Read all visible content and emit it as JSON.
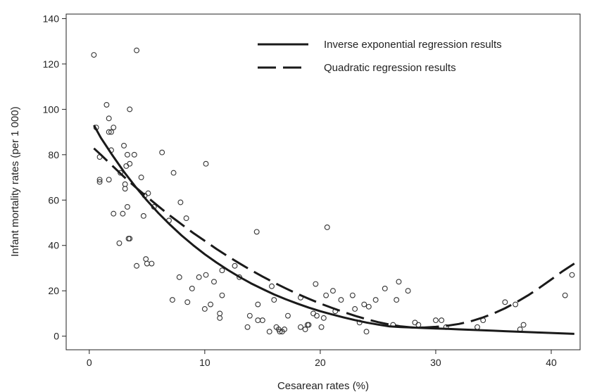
{
  "chart_data": {
    "type": "scatter",
    "title": "",
    "xlabel": "Cesarean rates (%)",
    "ylabel": "Infant mortality rates (per 1 000)",
    "xlim": [
      -2,
      42.5
    ],
    "ylim": [
      -6,
      142
    ],
    "xticks": [
      0,
      10,
      20,
      30,
      40
    ],
    "yticks": [
      0,
      20,
      40,
      60,
      80,
      100,
      120,
      140
    ],
    "grid": false,
    "legend_position": "top-right",
    "legend": [
      {
        "label": "Inverse exponential regression results",
        "style": "solid"
      },
      {
        "label": "Quadratic regression results",
        "style": "dashed"
      }
    ],
    "points": [
      [
        0.4,
        124
      ],
      [
        0.6,
        92
      ],
      [
        0.9,
        79
      ],
      [
        0.9,
        69
      ],
      [
        0.9,
        68
      ],
      [
        1.5,
        102
      ],
      [
        1.7,
        96
      ],
      [
        1.7,
        90
      ],
      [
        1.9,
        90
      ],
      [
        2.1,
        92
      ],
      [
        1.9,
        82
      ],
      [
        1.7,
        69
      ],
      [
        2.1,
        54
      ],
      [
        2.6,
        41
      ],
      [
        2.7,
        72
      ],
      [
        2.9,
        54
      ],
      [
        3.0,
        84
      ],
      [
        3.1,
        65
      ],
      [
        3.1,
        67
      ],
      [
        3.3,
        80
      ],
      [
        3.2,
        75
      ],
      [
        3.3,
        57
      ],
      [
        3.5,
        76
      ],
      [
        3.5,
        100
      ],
      [
        3.5,
        43
      ],
      [
        3.4,
        43
      ],
      [
        3.9,
        80
      ],
      [
        4.1,
        126
      ],
      [
        4.1,
        31
      ],
      [
        4.5,
        70
      ],
      [
        4.7,
        53
      ],
      [
        4.8,
        62
      ],
      [
        4.9,
        34
      ],
      [
        5.0,
        32
      ],
      [
        5.1,
        63
      ],
      [
        5.4,
        32
      ],
      [
        5.6,
        57
      ],
      [
        6.3,
        81
      ],
      [
        6.9,
        51
      ],
      [
        7.2,
        16
      ],
      [
        7.3,
        72
      ],
      [
        7.8,
        26
      ],
      [
        7.9,
        59
      ],
      [
        8.4,
        52
      ],
      [
        8.5,
        15
      ],
      [
        8.9,
        21
      ],
      [
        9.5,
        26
      ],
      [
        10.0,
        12
      ],
      [
        10.1,
        76
      ],
      [
        10.1,
        27
      ],
      [
        10.5,
        14
      ],
      [
        10.8,
        24
      ],
      [
        11.3,
        10
      ],
      [
        11.3,
        8
      ],
      [
        11.5,
        18
      ],
      [
        11.5,
        29
      ],
      [
        12.6,
        31
      ],
      [
        13.0,
        26
      ],
      [
        13.7,
        4
      ],
      [
        13.9,
        9
      ],
      [
        14.5,
        46
      ],
      [
        14.6,
        14
      ],
      [
        14.6,
        7
      ],
      [
        15.0,
        7
      ],
      [
        15.6,
        2
      ],
      [
        15.8,
        22
      ],
      [
        16.0,
        16
      ],
      [
        16.2,
        4
      ],
      [
        16.4,
        3
      ],
      [
        16.5,
        2
      ],
      [
        16.7,
        2
      ],
      [
        16.9,
        3
      ],
      [
        17.2,
        9
      ],
      [
        18.3,
        17
      ],
      [
        18.3,
        4
      ],
      [
        18.7,
        3
      ],
      [
        18.9,
        5
      ],
      [
        19.0,
        5
      ],
      [
        19.4,
        10
      ],
      [
        19.6,
        23
      ],
      [
        19.7,
        9
      ],
      [
        20.1,
        4
      ],
      [
        20.3,
        8
      ],
      [
        20.5,
        18
      ],
      [
        20.6,
        48
      ],
      [
        21.1,
        20
      ],
      [
        21.3,
        11
      ],
      [
        21.8,
        16
      ],
      [
        22.8,
        18
      ],
      [
        23.0,
        12
      ],
      [
        23.4,
        6
      ],
      [
        23.8,
        14
      ],
      [
        24.0,
        2
      ],
      [
        24.2,
        13
      ],
      [
        24.8,
        16
      ],
      [
        25.6,
        21
      ],
      [
        26.3,
        5
      ],
      [
        26.6,
        16
      ],
      [
        26.8,
        24
      ],
      [
        27.6,
        20
      ],
      [
        28.2,
        6
      ],
      [
        28.5,
        5
      ],
      [
        30.0,
        7
      ],
      [
        30.5,
        7
      ],
      [
        30.9,
        4
      ],
      [
        33.6,
        4
      ],
      [
        34.1,
        7
      ],
      [
        36.0,
        15
      ],
      [
        36.9,
        14
      ],
      [
        37.3,
        3
      ],
      [
        37.6,
        5
      ],
      [
        41.2,
        18
      ],
      [
        41.8,
        27
      ]
    ],
    "series": [
      {
        "name": "Inverse exponential regression results",
        "style": "solid",
        "x": [
          0.4,
          1,
          2,
          3,
          4,
          5,
          6,
          7,
          8,
          9,
          10,
          11,
          12,
          13,
          14,
          15,
          16,
          17,
          18,
          19,
          20,
          21,
          22,
          23,
          24,
          25,
          26,
          27,
          28,
          29,
          30,
          31,
          32,
          33,
          34,
          35,
          36,
          37,
          38,
          39,
          40,
          41,
          42
        ],
        "y": [
          93.0,
          87.5,
          79.8,
          72.5,
          65.9,
          59.8,
          54.2,
          49.1,
          44.4,
          40.1,
          36.1,
          32.5,
          29.2,
          26.1,
          23.3,
          20.8,
          18.4,
          16.3,
          14.4,
          12.6,
          11.0,
          9.6,
          8.3,
          7.1,
          6.0,
          5.1,
          4.3,
          4.0,
          3.8,
          3.6,
          3.4,
          3.2,
          3.0,
          2.8,
          2.6,
          2.4,
          2.2,
          2.0,
          1.8,
          1.6,
          1.4,
          1.2,
          1.0
        ]
      },
      {
        "name": "Quadratic regression results",
        "style": "dashed",
        "x": [
          0.4,
          1,
          2,
          3,
          4,
          5,
          6,
          7,
          8,
          9,
          10,
          11,
          12,
          13,
          14,
          15,
          16,
          17,
          18,
          19,
          20,
          21,
          22,
          23,
          24,
          25,
          26,
          27,
          28,
          29,
          30,
          31,
          32,
          33,
          34,
          35,
          36,
          37,
          38,
          39,
          40,
          41,
          42
        ],
        "y": [
          82.8,
          80.0,
          75.1,
          70.3,
          65.7,
          61.4,
          57.2,
          53.1,
          49.3,
          45.5,
          42.0,
          38.5,
          35.2,
          32.1,
          29.1,
          26.3,
          23.6,
          21.1,
          18.7,
          16.5,
          14.4,
          12.5,
          10.7,
          9.0,
          7.5,
          6.2,
          5.1,
          4.3,
          3.8,
          3.8,
          4.1,
          4.6,
          5.4,
          6.5,
          8.1,
          10.0,
          12.3,
          15.0,
          18.0,
          21.4,
          25.0,
          28.7,
          32.0
        ]
      }
    ]
  }
}
